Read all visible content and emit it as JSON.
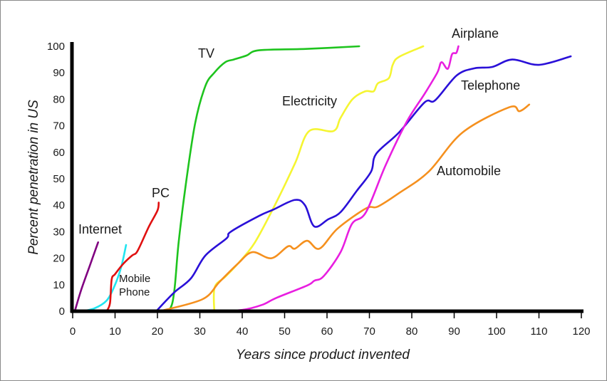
{
  "chart_data": {
    "type": "line",
    "title": "",
    "xlabel": "Years since product invented",
    "ylabel": "Percent penetration in US",
    "xlim": [
      0,
      120
    ],
    "ylim": [
      0,
      100
    ],
    "xticks": [
      "0",
      "10",
      "20",
      "30",
      "40",
      "50",
      "60",
      "70",
      "80",
      "90",
      "100",
      "110",
      "120"
    ],
    "yticks": [
      "0",
      "10",
      "20",
      "30",
      "40",
      "50",
      "60",
      "70",
      "80",
      "90",
      "100"
    ],
    "grid": false,
    "legend": "none (series labelled directly on the plot)",
    "series": [
      {
        "name": "Internet",
        "color": "#800080",
        "points": [
          [
            0.5,
            0
          ],
          [
            2,
            8
          ],
          [
            4,
            17
          ],
          [
            6,
            26
          ]
        ]
      },
      {
        "name": "Mobile Phone",
        "color": "#22e5f0",
        "points": [
          [
            2,
            0
          ],
          [
            5,
            1
          ],
          [
            8,
            4
          ],
          [
            10,
            10
          ],
          [
            11.5,
            17
          ],
          [
            12.6,
            25
          ]
        ]
      },
      {
        "name": "PC",
        "color": "#e01010",
        "points": [
          [
            8,
            0
          ],
          [
            8.8,
            3
          ],
          [
            9.2,
            12
          ],
          [
            10,
            14
          ],
          [
            12,
            18
          ],
          [
            14,
            21
          ],
          [
            15,
            22
          ],
          [
            16,
            25
          ],
          [
            18,
            32
          ],
          [
            20,
            38
          ],
          [
            20.3,
            41
          ]
        ]
      },
      {
        "name": "TV",
        "color": "#1ec41e",
        "points": [
          [
            21,
            0
          ],
          [
            23,
            1
          ],
          [
            24,
            8
          ],
          [
            25,
            26
          ],
          [
            26.7,
            48
          ],
          [
            28.9,
            71
          ],
          [
            31.3,
            85
          ],
          [
            33.4,
            90
          ],
          [
            36,
            94
          ],
          [
            38,
            95
          ],
          [
            41,
            96.5
          ],
          [
            44,
            98.5
          ],
          [
            55,
            99
          ],
          [
            67.6,
            100
          ]
        ]
      },
      {
        "name": "Electricity",
        "color": "#f5f532",
        "points": [
          [
            33.4,
            0
          ],
          [
            33.5,
            9
          ],
          [
            36,
            13
          ],
          [
            39,
            18
          ],
          [
            43,
            26
          ],
          [
            48,
            41
          ],
          [
            52.5,
            56
          ],
          [
            55.8,
            68
          ],
          [
            61.5,
            68
          ],
          [
            63.2,
            73
          ],
          [
            66,
            80
          ],
          [
            69,
            83
          ],
          [
            71,
            83
          ],
          [
            72,
            86
          ],
          [
            74.6,
            88
          ],
          [
            75.5,
            93
          ],
          [
            77,
            96
          ],
          [
            82.7,
            100
          ]
        ]
      },
      {
        "name": "Telephone",
        "color": "#2a10d8",
        "points": [
          [
            19.7,
            0
          ],
          [
            23.9,
            7
          ],
          [
            27.9,
            12.4
          ],
          [
            31.3,
            21
          ],
          [
            36.3,
            27.5
          ],
          [
            37.3,
            30
          ],
          [
            44,
            36
          ],
          [
            47.4,
            38.4
          ],
          [
            52.4,
            42
          ],
          [
            54.8,
            40
          ],
          [
            57,
            32
          ],
          [
            60.3,
            34.7
          ],
          [
            63.2,
            37.4
          ],
          [
            67,
            45.4
          ],
          [
            70.4,
            52.7
          ],
          [
            71.6,
            59.4
          ],
          [
            77,
            67.5
          ],
          [
            83,
            78.8
          ],
          [
            85.5,
            79.6
          ],
          [
            90.6,
            89
          ],
          [
            94.8,
            91.7
          ],
          [
            99,
            92.2
          ],
          [
            103.7,
            95
          ],
          [
            110,
            93
          ],
          [
            117.5,
            96.2
          ]
        ]
      },
      {
        "name": "Automobile",
        "color": "#f5901e",
        "points": [
          [
            20.5,
            0
          ],
          [
            30.6,
            4.5
          ],
          [
            34.6,
            11
          ],
          [
            39,
            18
          ],
          [
            42.4,
            22.3
          ],
          [
            46.9,
            20
          ],
          [
            50.8,
            24.5
          ],
          [
            52.4,
            23.6
          ],
          [
            55.3,
            26.6
          ],
          [
            58.2,
            23.6
          ],
          [
            62.5,
            31.2
          ],
          [
            69.2,
            38.8
          ],
          [
            72,
            39.5
          ],
          [
            77,
            44.6
          ],
          [
            84,
            52.7
          ],
          [
            92,
            67.5
          ],
          [
            103,
            77
          ],
          [
            105.4,
            75.5
          ],
          [
            107.7,
            78
          ]
        ]
      },
      {
        "name": "Airplane",
        "color": "#e81ee0",
        "points": [
          [
            33.4,
            0
          ],
          [
            40,
            0.5
          ],
          [
            44.7,
            2.4
          ],
          [
            48,
            5
          ],
          [
            55.3,
            9.7
          ],
          [
            57,
            11.5
          ],
          [
            59.2,
            13.2
          ],
          [
            63.2,
            22.3
          ],
          [
            65.9,
            33
          ],
          [
            69.2,
            37.4
          ],
          [
            73.8,
            55
          ],
          [
            78.8,
            71.5
          ],
          [
            83,
            82
          ],
          [
            86,
            90
          ],
          [
            87,
            94
          ],
          [
            88.5,
            91.5
          ],
          [
            89.5,
            97
          ],
          [
            90.5,
            97.5
          ],
          [
            91,
            100
          ]
        ]
      }
    ]
  }
}
